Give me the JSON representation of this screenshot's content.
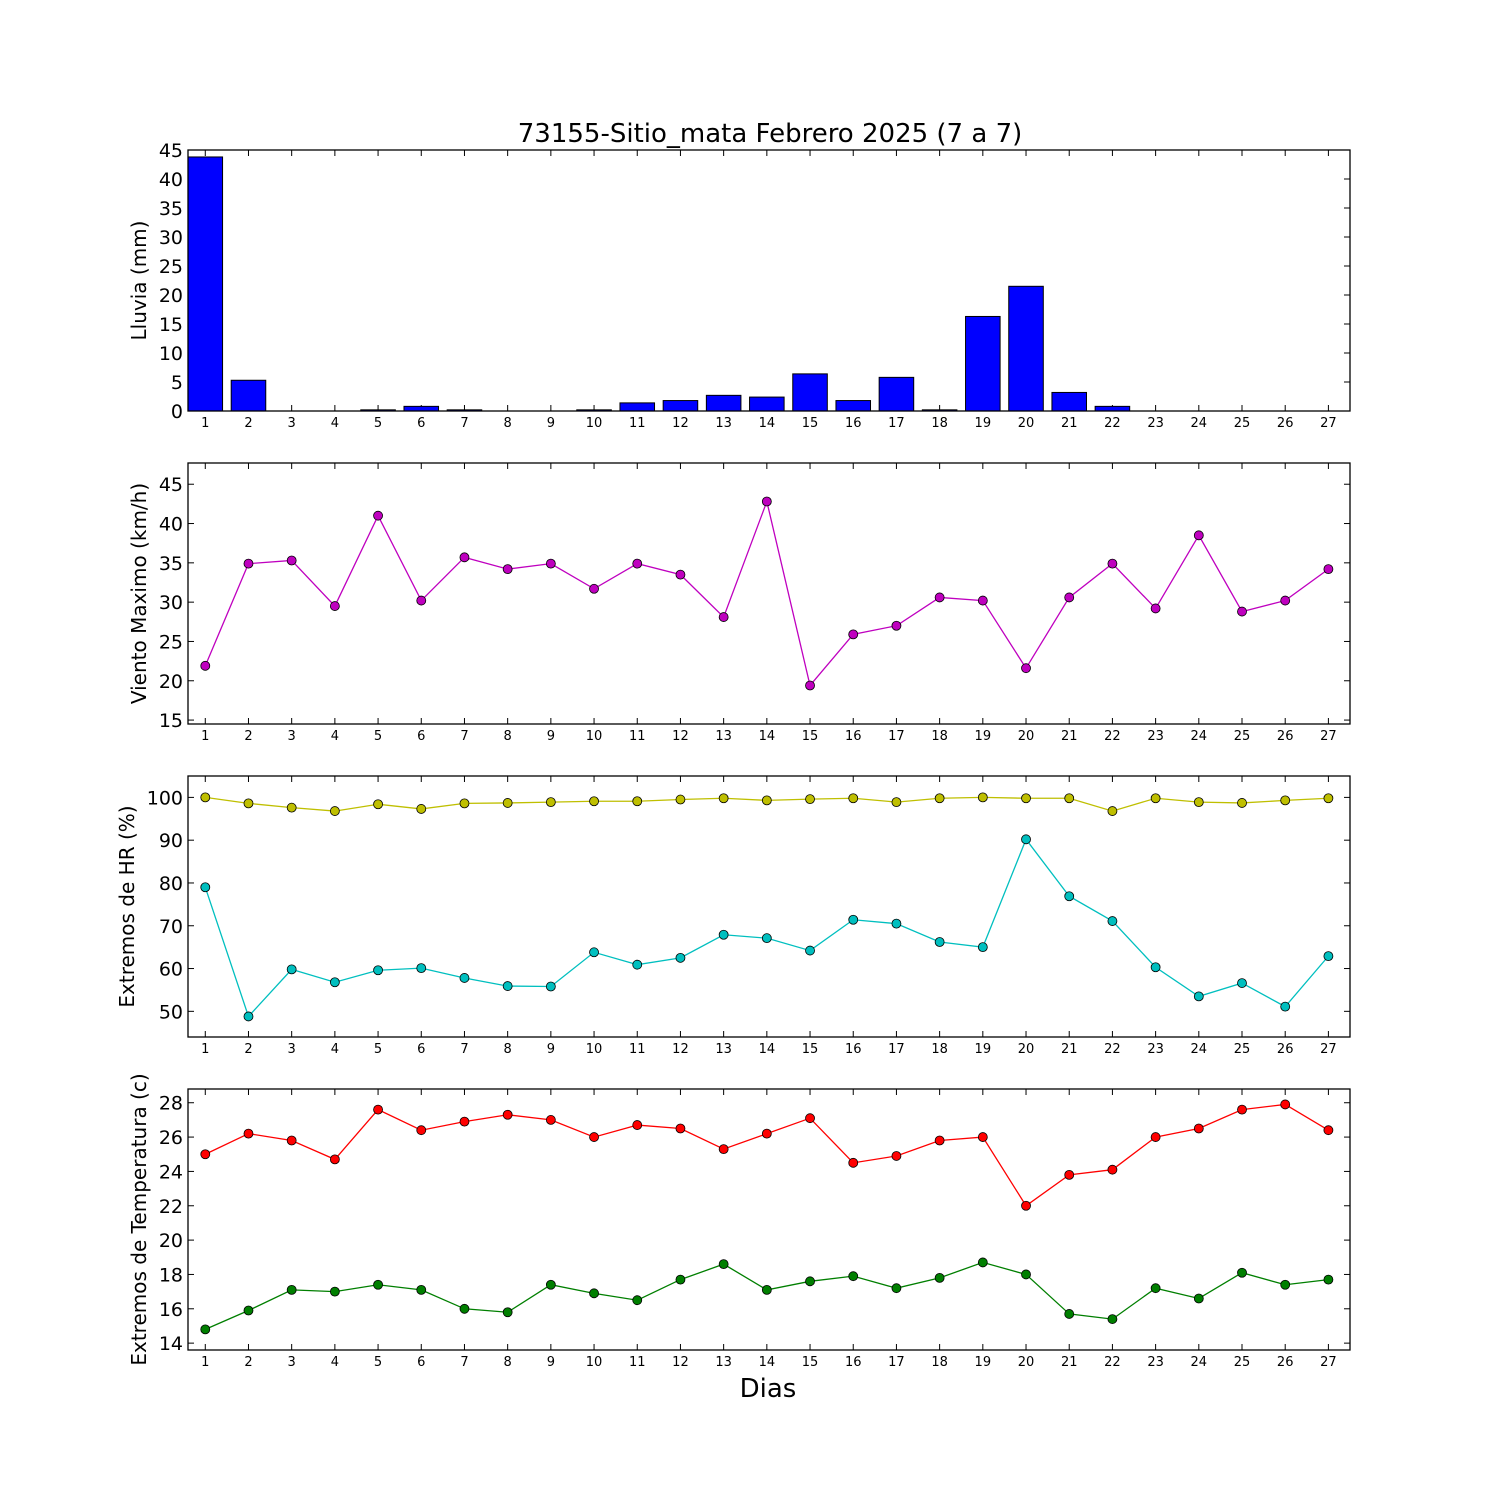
{
  "chart_data": {
    "type": "multi-panel",
    "title": "73155-Sitio_mata Febrero 2025  (7 a 7)",
    "xlabel": "Dias",
    "x": [
      1,
      2,
      3,
      4,
      5,
      6,
      7,
      8,
      9,
      10,
      11,
      12,
      13,
      14,
      15,
      16,
      17,
      18,
      19,
      20,
      21,
      22,
      23,
      24,
      25,
      26,
      27
    ],
    "panels": [
      {
        "type": "bar",
        "ylabel": "Lluvia (mm)",
        "ylim": [
          0,
          45
        ],
        "yticks": [
          0,
          5,
          10,
          15,
          20,
          25,
          30,
          35,
          40,
          45
        ],
        "color": "#0000ff",
        "series": [
          {
            "values": [
              43.8,
              5.3,
              0,
              0,
              0.2,
              0.8,
              0.2,
              0,
              0,
              0.2,
              1.4,
              1.8,
              2.7,
              2.4,
              6.4,
              1.8,
              5.8,
              0.2,
              16.3,
              21.5,
              3.2,
              0.8,
              0,
              0,
              0,
              0,
              0
            ]
          }
        ]
      },
      {
        "type": "line",
        "ylabel": "Viento Maximo (km/h)",
        "ylim": [
          14.5,
          47.7
        ],
        "yticks": [
          15,
          20,
          25,
          30,
          35,
          40,
          45
        ],
        "series": [
          {
            "color": "#bf00bf",
            "values": [
              21.9,
              34.9,
              35.3,
              29.5,
              41.0,
              30.2,
              35.7,
              34.2,
              34.9,
              31.7,
              34.9,
              33.5,
              28.1,
              42.8,
              19.4,
              25.9,
              27.0,
              30.6,
              30.2,
              21.6,
              30.6,
              34.9,
              29.2,
              38.5,
              28.8,
              30.2,
              34.2
            ]
          }
        ]
      },
      {
        "type": "line",
        "ylabel": "Extremos de HR (%)",
        "ylim": [
          44,
          105
        ],
        "yticks": [
          50,
          60,
          70,
          80,
          90,
          100
        ],
        "series": [
          {
            "color": "#bfbf00",
            "values": [
              100,
              98.6,
              97.6,
              96.8,
              98.4,
              97.3,
              98.6,
              98.7,
              98.9,
              99.1,
              99.1,
              99.5,
              99.8,
              99.3,
              99.6,
              99.8,
              98.9,
              99.8,
              100,
              99.8,
              99.8,
              96.8,
              99.8,
              98.9,
              98.7,
              99.3,
              99.8
            ]
          },
          {
            "color": "#00bfbf",
            "values": [
              79.0,
              48.8,
              59.8,
              56.8,
              59.6,
              60.1,
              57.8,
              55.9,
              55.8,
              63.8,
              60.9,
              62.5,
              67.9,
              67.1,
              64.2,
              71.4,
              70.5,
              66.2,
              65.0,
              90.2,
              76.9,
              71.1,
              60.3,
              53.5,
              56.6,
              51.1,
              62.9
            ]
          }
        ]
      },
      {
        "type": "line",
        "ylabel": "Extremos de Temperatura (c)",
        "ylim": [
          13.6,
          28.8
        ],
        "yticks": [
          14,
          16,
          18,
          20,
          22,
          24,
          26,
          28
        ],
        "series": [
          {
            "color": "#ff0000",
            "values": [
              25.0,
              26.2,
              25.8,
              24.7,
              27.6,
              26.4,
              26.9,
              27.3,
              27.0,
              26.0,
              26.7,
              26.5,
              25.3,
              26.2,
              27.1,
              24.5,
              24.9,
              25.8,
              26.0,
              22.0,
              23.8,
              24.1,
              26.0,
              26.5,
              27.6,
              27.9,
              26.4
            ]
          },
          {
            "color": "#007f00",
            "values": [
              14.8,
              15.9,
              17.1,
              17.0,
              17.4,
              17.1,
              16.0,
              15.8,
              17.4,
              16.9,
              16.5,
              17.7,
              18.6,
              17.1,
              17.6,
              17.9,
              17.2,
              17.8,
              18.7,
              18.0,
              15.7,
              15.4,
              17.2,
              16.6,
              18.1,
              17.4,
              17.7
            ]
          }
        ]
      }
    ]
  }
}
